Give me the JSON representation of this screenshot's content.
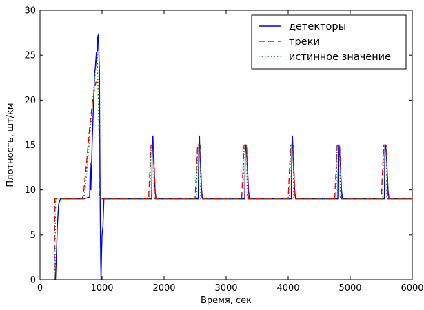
{
  "chart_data": {
    "type": "line",
    "title": "",
    "xlabel": "Время, сек",
    "ylabel": "Плотность, шт/км",
    "xlim": [
      0,
      6000
    ],
    "ylim": [
      0,
      30
    ],
    "xticks": [
      0,
      1000,
      2000,
      3000,
      4000,
      5000,
      6000
    ],
    "yticks": [
      0,
      5,
      10,
      15,
      20,
      25,
      30
    ],
    "grid": false,
    "legend_position": "top-right",
    "series": [
      {
        "name": "детекторы",
        "color": "#0000ee",
        "style": "solid",
        "points": [
          [
            250,
            0
          ],
          [
            265,
            3
          ],
          [
            280,
            6
          ],
          [
            300,
            8.4
          ],
          [
            330,
            9
          ],
          [
            600,
            9
          ],
          [
            700,
            9
          ],
          [
            800,
            9.2
          ],
          [
            810,
            13
          ],
          [
            820,
            10
          ],
          [
            840,
            15
          ],
          [
            860,
            19
          ],
          [
            870,
            20.8
          ],
          [
            880,
            23
          ],
          [
            890,
            23.5
          ],
          [
            900,
            24.5
          ],
          [
            910,
            25.3
          ],
          [
            915,
            24
          ],
          [
            922,
            27
          ],
          [
            928,
            25.5
          ],
          [
            935,
            27.2
          ],
          [
            940,
            26.5
          ],
          [
            946,
            27.4
          ],
          [
            950,
            25
          ],
          [
            958,
            23.2
          ],
          [
            964,
            15
          ],
          [
            970,
            8
          ],
          [
            978,
            2
          ],
          [
            984,
            0
          ],
          [
            992,
            2.8
          ],
          [
            1000,
            5
          ],
          [
            1015,
            6
          ],
          [
            1030,
            9
          ],
          [
            1800,
            9
          ],
          [
            1810,
            15
          ],
          [
            1820,
            16
          ],
          [
            1830,
            13.5
          ],
          [
            1838,
            12.5
          ],
          [
            1845,
            11.5
          ],
          [
            1855,
            10
          ],
          [
            1870,
            9
          ],
          [
            2550,
            9
          ],
          [
            2560,
            15
          ],
          [
            2570,
            16
          ],
          [
            2580,
            13.5
          ],
          [
            2588,
            12.5
          ],
          [
            2595,
            11.5
          ],
          [
            2605,
            10
          ],
          [
            2620,
            9
          ],
          [
            3300,
            9
          ],
          [
            3310,
            15
          ],
          [
            3320,
            15
          ],
          [
            3330,
            14
          ],
          [
            3340,
            13
          ],
          [
            3350,
            11.5
          ],
          [
            3360,
            10
          ],
          [
            3375,
            9
          ],
          [
            4050,
            9
          ],
          [
            4060,
            15
          ],
          [
            4070,
            16
          ],
          [
            4080,
            13.5
          ],
          [
            4088,
            12.5
          ],
          [
            4095,
            11.5
          ],
          [
            4105,
            10
          ],
          [
            4120,
            9
          ],
          [
            4800,
            9
          ],
          [
            4810,
            15
          ],
          [
            4820,
            15
          ],
          [
            4830,
            14
          ],
          [
            4840,
            13
          ],
          [
            4850,
            11.5
          ],
          [
            4860,
            10
          ],
          [
            4875,
            9
          ],
          [
            5550,
            9
          ],
          [
            5560,
            15
          ],
          [
            5570,
            15
          ],
          [
            5580,
            14
          ],
          [
            5590,
            13
          ],
          [
            5600,
            11.5
          ],
          [
            5610,
            10
          ],
          [
            5625,
            9
          ],
          [
            6000,
            9
          ]
        ]
      },
      {
        "name": "треки",
        "color": "#ff0000",
        "style": "dashed",
        "points": [
          [
            230,
            0
          ],
          [
            240,
            9
          ],
          [
            250,
            9
          ],
          [
            600,
            9
          ],
          [
            680,
            9
          ],
          [
            700,
            9.5
          ],
          [
            750,
            13
          ],
          [
            800,
            17
          ],
          [
            850,
            20
          ],
          [
            900,
            22
          ],
          [
            950,
            22
          ],
          [
            960,
            9.5
          ],
          [
            980,
            9
          ],
          [
            1000,
            9
          ],
          [
            1750,
            9
          ],
          [
            1790,
            15
          ],
          [
            1830,
            15
          ],
          [
            1860,
            9
          ],
          [
            2500,
            9
          ],
          [
            2540,
            15
          ],
          [
            2580,
            15
          ],
          [
            2610,
            9
          ],
          [
            3250,
            9
          ],
          [
            3290,
            15
          ],
          [
            3330,
            15
          ],
          [
            3360,
            9
          ],
          [
            4000,
            9
          ],
          [
            4040,
            15
          ],
          [
            4080,
            15
          ],
          [
            4110,
            9
          ],
          [
            4750,
            9
          ],
          [
            4790,
            15
          ],
          [
            4830,
            15
          ],
          [
            4860,
            9
          ],
          [
            5500,
            9
          ],
          [
            5540,
            15
          ],
          [
            5580,
            15
          ],
          [
            5610,
            9
          ],
          [
            6000,
            9
          ]
        ]
      },
      {
        "name": "истинное значение",
        "color": "#008000",
        "style": "dotted",
        "points": [
          [
            240,
            0
          ],
          [
            250,
            9
          ],
          [
            700,
            9
          ],
          [
            720,
            9.5
          ],
          [
            920,
            25.3
          ],
          [
            940,
            20
          ],
          [
            950,
            16
          ],
          [
            960,
            10
          ],
          [
            980,
            9
          ],
          [
            1770,
            9
          ],
          [
            1790,
            15
          ],
          [
            1830,
            15
          ],
          [
            1840,
            9
          ],
          [
            2520,
            9
          ],
          [
            2540,
            15
          ],
          [
            2580,
            15
          ],
          [
            2590,
            9
          ],
          [
            3270,
            9
          ],
          [
            3290,
            15
          ],
          [
            3330,
            15
          ],
          [
            3340,
            9
          ],
          [
            4020,
            9
          ],
          [
            4040,
            15
          ],
          [
            4080,
            15
          ],
          [
            4090,
            9
          ],
          [
            4770,
            9
          ],
          [
            4790,
            15
          ],
          [
            4830,
            15
          ],
          [
            4840,
            9
          ],
          [
            5520,
            9
          ],
          [
            5540,
            15
          ],
          [
            5580,
            15
          ],
          [
            5590,
            9
          ],
          [
            6000,
            9
          ]
        ]
      }
    ]
  }
}
